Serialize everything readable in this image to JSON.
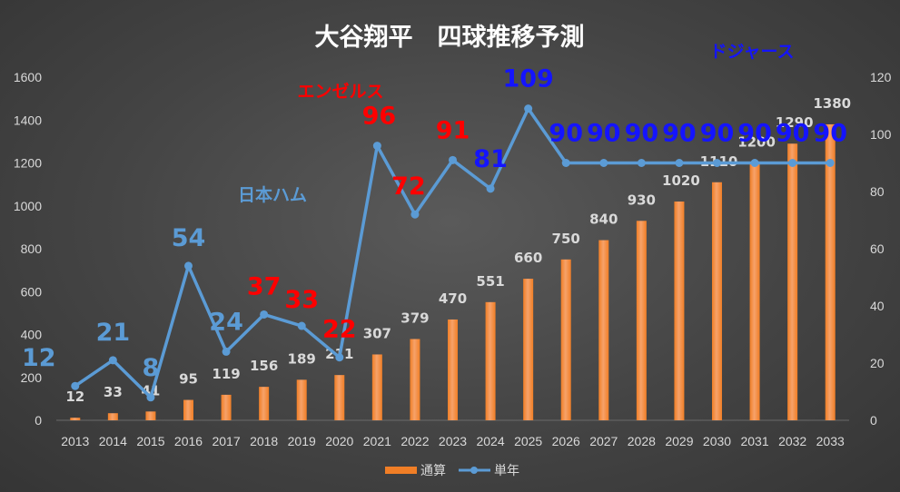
{
  "colors": {
    "bar": "#f07e26",
    "bar_light": "#f6a26a",
    "line": "#5b9bd5",
    "red": "#ff0000",
    "blue": "#1414ff",
    "lightblue": "#5b9bd5",
    "gridline": "#6a6a6a"
  },
  "chart_data": {
    "type": "bar",
    "title": "大谷翔平　四球推移予測",
    "categories": [
      "2013",
      "2014",
      "2015",
      "2016",
      "2017",
      "2018",
      "2019",
      "2020",
      "2021",
      "2022",
      "2023",
      "2024",
      "2025",
      "2026",
      "2027",
      "2028",
      "2029",
      "2030",
      "2031",
      "2032",
      "2033"
    ],
    "ylim_left": [
      0,
      1600
    ],
    "yticks_left": [
      0,
      200,
      400,
      600,
      800,
      1000,
      1200,
      1400,
      1600
    ],
    "ylim_right": [
      0,
      120
    ],
    "yticks_right": [
      0,
      20,
      40,
      60,
      80,
      100,
      120
    ],
    "grid": false,
    "legend_position": "bottom",
    "series": [
      {
        "name": "通算",
        "type": "bar",
        "axis": "left",
        "values": [
          12,
          33,
          41,
          95,
          119,
          156,
          189,
          211,
          307,
          379,
          470,
          551,
          660,
          750,
          840,
          930,
          1020,
          1110,
          1200,
          1290,
          1380
        ],
        "labels": [
          "12",
          "33",
          "41",
          "95",
          "119",
          "156",
          "189",
          "211",
          "307",
          "379",
          "470",
          "551",
          "660",
          "750",
          "840",
          "930",
          "1020",
          "1110",
          "1200",
          "1290",
          "1380"
        ]
      },
      {
        "name": "単年",
        "type": "line",
        "axis": "right",
        "values": [
          12,
          21,
          8,
          54,
          24,
          37,
          33,
          22,
          96,
          72,
          91,
          81,
          109,
          90,
          90,
          90,
          90,
          90,
          90,
          90,
          90
        ],
        "labels": [
          "12",
          "21",
          "8",
          "54",
          "24",
          "37",
          "33",
          "22",
          "96",
          "72",
          "91",
          "81",
          "109",
          "90",
          "90",
          "90",
          "90",
          "90",
          "90",
          "90",
          "90"
        ],
        "label_colors": [
          "lightblue",
          "lightblue",
          "lightblue",
          "lightblue",
          "lightblue",
          "red",
          "red",
          "red",
          "red",
          "red",
          "red",
          "blue",
          "blue",
          "blue",
          "blue",
          "blue",
          "blue",
          "blue",
          "blue",
          "blue",
          "blue"
        ]
      }
    ],
    "annotations": [
      {
        "text": "日本ハム",
        "color": "lightblue"
      },
      {
        "text": "エンゼルス",
        "color": "red"
      },
      {
        "text": "ドジャース",
        "color": "blue"
      }
    ]
  }
}
